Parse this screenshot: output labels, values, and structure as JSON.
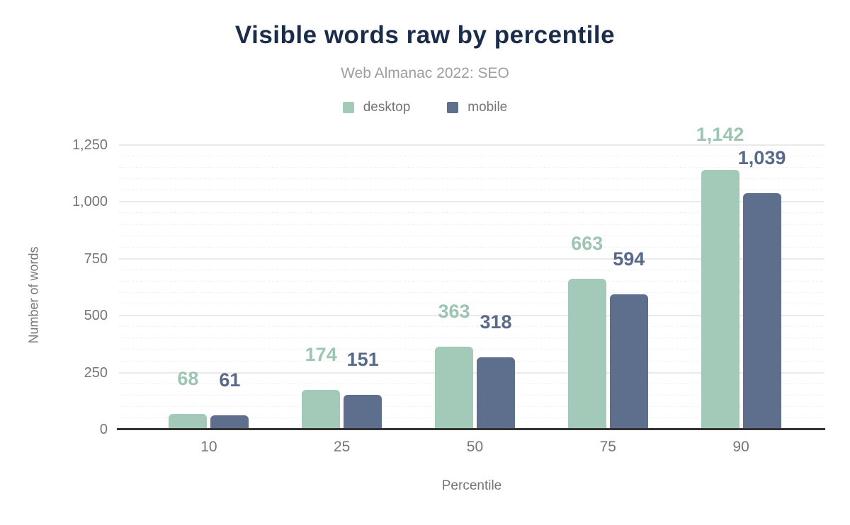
{
  "header": {
    "title": "Visible words raw by percentile",
    "subtitle": "Web Almanac 2022: SEO"
  },
  "legend": {
    "items": [
      {
        "label": "desktop",
        "color": "#a3c9b8"
      },
      {
        "label": "mobile",
        "color": "#5e6f8d"
      }
    ]
  },
  "chart_data": {
    "type": "bar",
    "title": "Visible words raw by percentile",
    "subtitle": "Web Almanac 2022: SEO",
    "categories": [
      "10",
      "25",
      "50",
      "75",
      "90"
    ],
    "series": [
      {
        "name": "desktop",
        "color": "#a3c9b8",
        "label_color": "#9cc5b2",
        "values": [
          68,
          174,
          363,
          663,
          1142
        ],
        "value_labels": [
          "68",
          "174",
          "363",
          "663",
          "1,142"
        ]
      },
      {
        "name": "mobile",
        "color": "#5e6f8d",
        "label_color": "#58698a",
        "values": [
          61,
          151,
          318,
          594,
          1039
        ],
        "value_labels": [
          "61",
          "151",
          "318",
          "594",
          "1,039"
        ]
      }
    ],
    "xlabel": "Percentile",
    "ylabel": "Number of words",
    "ylim": [
      0,
      1250
    ],
    "yticks": [
      {
        "value": 0,
        "label": "0"
      },
      {
        "value": 250,
        "label": "250"
      },
      {
        "value": 500,
        "label": "500"
      },
      {
        "value": 750,
        "label": "750"
      },
      {
        "value": 1000,
        "label": "1,000"
      },
      {
        "value": 1250,
        "label": "1,250"
      }
    ],
    "grid": {
      "major_step": 250,
      "minor_step": 50
    },
    "legend_position": "top"
  }
}
